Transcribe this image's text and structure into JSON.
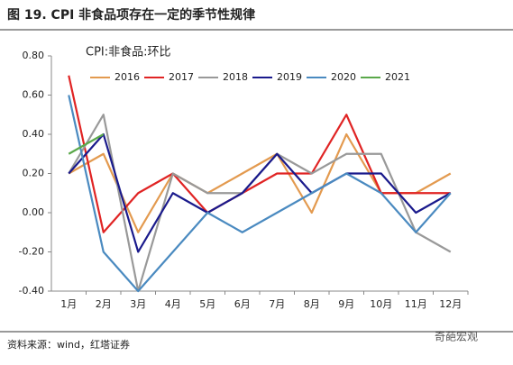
{
  "chart_data": {
    "type": "line",
    "title": "图 19. CPI 非食品项存在一定的季节性规律",
    "subtitle": "CPI:非食品:环比",
    "source": "资料来源：wind，红塔证券",
    "watermark": "奇葩宏观",
    "categories": [
      "1月",
      "2月",
      "3月",
      "4月",
      "5月",
      "6月",
      "7月",
      "8月",
      "9月",
      "10月",
      "11月",
      "12月"
    ],
    "series": [
      {
        "name": "2016",
        "color": "#e39a4f",
        "values": [
          0.2,
          0.3,
          -0.1,
          0.2,
          0.1,
          0.2,
          0.3,
          0.0,
          0.4,
          0.1,
          0.1,
          0.2
        ]
      },
      {
        "name": "2017",
        "color": "#e02424",
        "values": [
          0.7,
          -0.1,
          0.1,
          0.2,
          0.0,
          0.1,
          0.2,
          0.2,
          0.5,
          0.1,
          0.1,
          0.1
        ]
      },
      {
        "name": "2018",
        "color": "#999999",
        "values": [
          0.2,
          0.5,
          -0.4,
          0.2,
          0.1,
          0.1,
          0.3,
          0.2,
          0.3,
          0.3,
          -0.1,
          -0.2
        ]
      },
      {
        "name": "2019",
        "color": "#1a1a8c",
        "values": [
          0.2,
          0.4,
          -0.2,
          0.1,
          0.0,
          0.1,
          0.3,
          0.1,
          0.2,
          0.2,
          0.0,
          0.1
        ]
      },
      {
        "name": "2020",
        "color": "#4a8ac0",
        "values": [
          0.6,
          -0.2,
          -0.4,
          -0.2,
          0.0,
          -0.1,
          0.0,
          0.1,
          0.2,
          0.1,
          -0.1,
          0.1
        ]
      },
      {
        "name": "2021",
        "color": "#5aa84a",
        "values": [
          0.3,
          0.4,
          null,
          null,
          null,
          null,
          null,
          null,
          null,
          null,
          null,
          null
        ]
      }
    ],
    "ylim": [
      -0.4,
      0.8
    ],
    "yticks": [
      {
        "value": 0.8,
        "label": "0.80"
      },
      {
        "value": 0.6,
        "label": "0.60"
      },
      {
        "value": 0.4,
        "label": "0.40"
      },
      {
        "value": 0.2,
        "label": "0.20"
      },
      {
        "value": 0,
        "label": "0.00"
      },
      {
        "value": -0.2,
        "label": "-0.20"
      },
      {
        "value": -0.4,
        "label": "-0.40"
      }
    ],
    "grid": false
  }
}
